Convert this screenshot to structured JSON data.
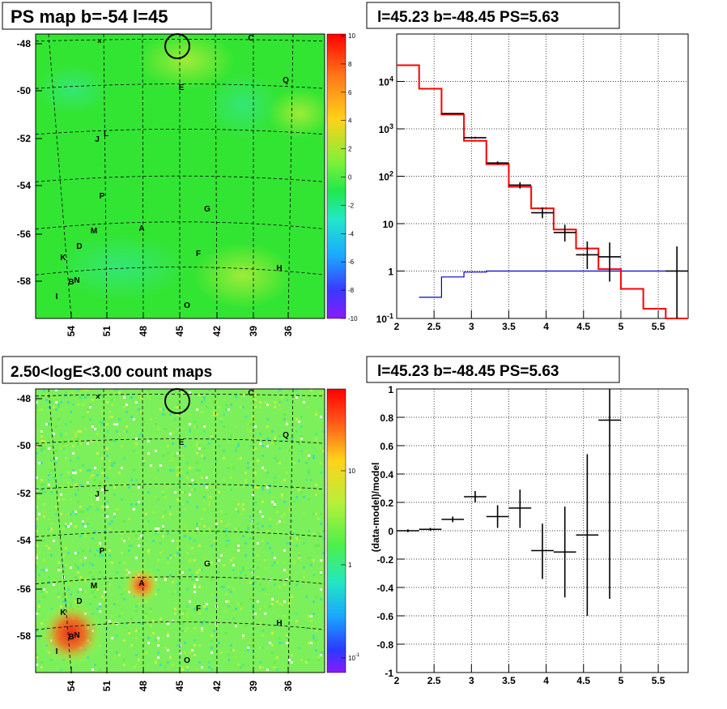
{
  "panels": {
    "ps_map_title": "PS map b=-54 l=45",
    "count_map_title": "2.50<logE<3.00 count maps",
    "spectrum_title": "l=45.23 b=-48.45 PS=5.63",
    "residual_title": "l=45.23 b=-48.45 PS=5.63"
  },
  "sky_maps": {
    "lon_ticks": [
      "54",
      "51",
      "48",
      "45",
      "42",
      "39",
      "36"
    ],
    "lat_ticks": [
      "-48",
      "-50",
      "-52",
      "-54",
      "-56",
      "-58"
    ],
    "ps_colorbar_ticks": [
      "10",
      "8",
      "6",
      "4",
      "2",
      "0",
      "-2",
      "-4",
      "-6",
      "-8",
      "-10"
    ],
    "count_colorbar_ticks": [
      "10",
      "1",
      "10^-1"
    ],
    "ps_map_source_labels": [
      "C",
      "Q",
      "E",
      "J",
      "L",
      "P",
      "G",
      "M",
      "A",
      "D",
      "F",
      "K",
      "H",
      "B",
      "N",
      "I",
      "O"
    ],
    "count_map_source_labels": [
      "C",
      "Q",
      "E",
      "J",
      "L",
      "P",
      "G",
      "M",
      "A",
      "D",
      "F",
      "K",
      "H",
      "B",
      "N",
      "I",
      "O"
    ],
    "colors": {
      "ps_background": "#33e533",
      "count_background": "#7cf05a",
      "hot_spot": "#f0341e",
      "circle": "#000000"
    }
  },
  "chart_data": [
    {
      "type": "line",
      "name": "spectrum",
      "x_range": [
        2,
        5.9
      ],
      "y_range": [
        0.1,
        100000
      ],
      "y_scale": "log",
      "x_ticks": [
        "2",
        "2.5",
        "3",
        "3.5",
        "4",
        "4.5",
        "5",
        "5.5"
      ],
      "y_ticks": [
        "10^-1",
        "1",
        "10",
        "10^2",
        "10^3",
        "10^4"
      ],
      "grid": true,
      "model_red_edges": [
        2,
        2.3,
        2.6,
        2.9,
        3.2,
        3.5,
        3.8,
        4.1,
        4.4,
        4.7,
        5.0,
        5.3,
        5.6,
        5.9
      ],
      "model_red_values": [
        22000,
        7000,
        2000,
        560,
        180,
        60,
        21,
        7.5,
        3.0,
        1.1,
        0.42,
        0.16,
        0.1
      ],
      "model_blue_edges": [
        2.3,
        2.6,
        2.9,
        3.2,
        5.9
      ],
      "model_blue_values": [
        0.28,
        0.75,
        0.95,
        1.0
      ],
      "data_points": [
        {
          "x1": 2.6,
          "x2": 2.9,
          "y": 2100,
          "lo": 2050,
          "hi": 2150
        },
        {
          "x1": 2.9,
          "x2": 3.2,
          "y": 650,
          "lo": 620,
          "hi": 680
        },
        {
          "x1": 3.2,
          "x2": 3.5,
          "y": 190,
          "lo": 175,
          "hi": 205
        },
        {
          "x1": 3.5,
          "x2": 3.8,
          "y": 65,
          "lo": 55,
          "hi": 75
        },
        {
          "x1": 3.8,
          "x2": 4.1,
          "y": 17,
          "lo": 13,
          "hi": 22
        },
        {
          "x1": 4.1,
          "x2": 4.4,
          "y": 6.5,
          "lo": 4.2,
          "hi": 9.5
        },
        {
          "x1": 4.4,
          "x2": 4.7,
          "y": 2.2,
          "lo": 1.1,
          "hi": 4.2
        },
        {
          "x1": 4.7,
          "x2": 5.0,
          "y": 2.0,
          "lo": 0.6,
          "hi": 4.0
        },
        {
          "x1": 5.6,
          "x2": 5.9,
          "y": 1.0,
          "lo": 0.1,
          "hi": 3.3
        }
      ]
    },
    {
      "type": "scatter",
      "name": "residuals",
      "ylabel": "(data-model)/model",
      "x_range": [
        2,
        5.9
      ],
      "y_range": [
        -1,
        1
      ],
      "x_ticks": [
        "2",
        "2.5",
        "3",
        "3.5",
        "4",
        "4.5",
        "5",
        "5.5"
      ],
      "y_ticks": [
        "-1",
        "-0.8",
        "-0.6",
        "-0.4",
        "-0.2",
        "0",
        "0.2",
        "0.4",
        "0.6",
        "0.8",
        "1"
      ],
      "grid": true,
      "points": [
        {
          "x1": 2.0,
          "x2": 2.3,
          "y": 0.0,
          "lo": -0.01,
          "hi": 0.01
        },
        {
          "x1": 2.3,
          "x2": 2.6,
          "y": 0.01,
          "lo": 0.0,
          "hi": 0.02
        },
        {
          "x1": 2.6,
          "x2": 2.9,
          "y": 0.08,
          "lo": 0.06,
          "hi": 0.1
        },
        {
          "x1": 2.9,
          "x2": 3.2,
          "y": 0.24,
          "lo": 0.2,
          "hi": 0.28
        },
        {
          "x1": 3.2,
          "x2": 3.5,
          "y": 0.1,
          "lo": 0.02,
          "hi": 0.18
        },
        {
          "x1": 3.5,
          "x2": 3.8,
          "y": 0.16,
          "lo": 0.02,
          "hi": 0.29
        },
        {
          "x1": 3.8,
          "x2": 4.1,
          "y": -0.14,
          "lo": -0.34,
          "hi": 0.05
        },
        {
          "x1": 4.1,
          "x2": 4.4,
          "y": -0.15,
          "lo": -0.47,
          "hi": 0.17
        },
        {
          "x1": 4.4,
          "x2": 4.7,
          "y": -0.03,
          "lo": -0.6,
          "hi": 0.54
        },
        {
          "x1": 4.7,
          "x2": 5.0,
          "y": 0.78,
          "lo": -0.48,
          "hi": 1.0
        }
      ]
    }
  ]
}
